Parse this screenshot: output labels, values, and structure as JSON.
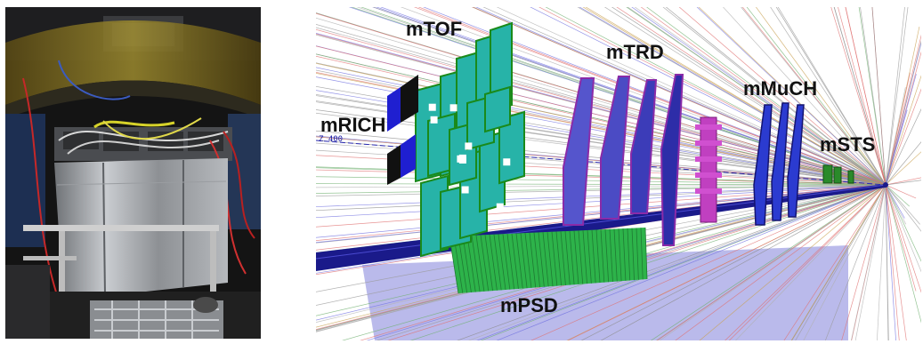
{
  "left_panel": {
    "icon": "photo-of-installed-detector-module"
  },
  "right_panel": {
    "icon": "simulated-particle-tracks-through-detector-setup",
    "axis_text": "Z 400",
    "labels": {
      "mtof": "mTOF",
      "mtrd": "mTRD",
      "mrich": "mRICH",
      "mmuch": "mMuCH",
      "msts": "mSTS",
      "mpsd": "mPSD"
    }
  },
  "colors": {
    "tof_panel": "#27b3a8",
    "tof_edge": "#1a8a1a",
    "trd_panel": "#5555cc",
    "trd_edge": "#8a2ba8",
    "much_panel": "#2b3bd0",
    "beam_pipe": "#1a1a8a",
    "psd_module": "#2db34a",
    "floor_plane": "#a9a9e6",
    "label_text": "#111111"
  }
}
